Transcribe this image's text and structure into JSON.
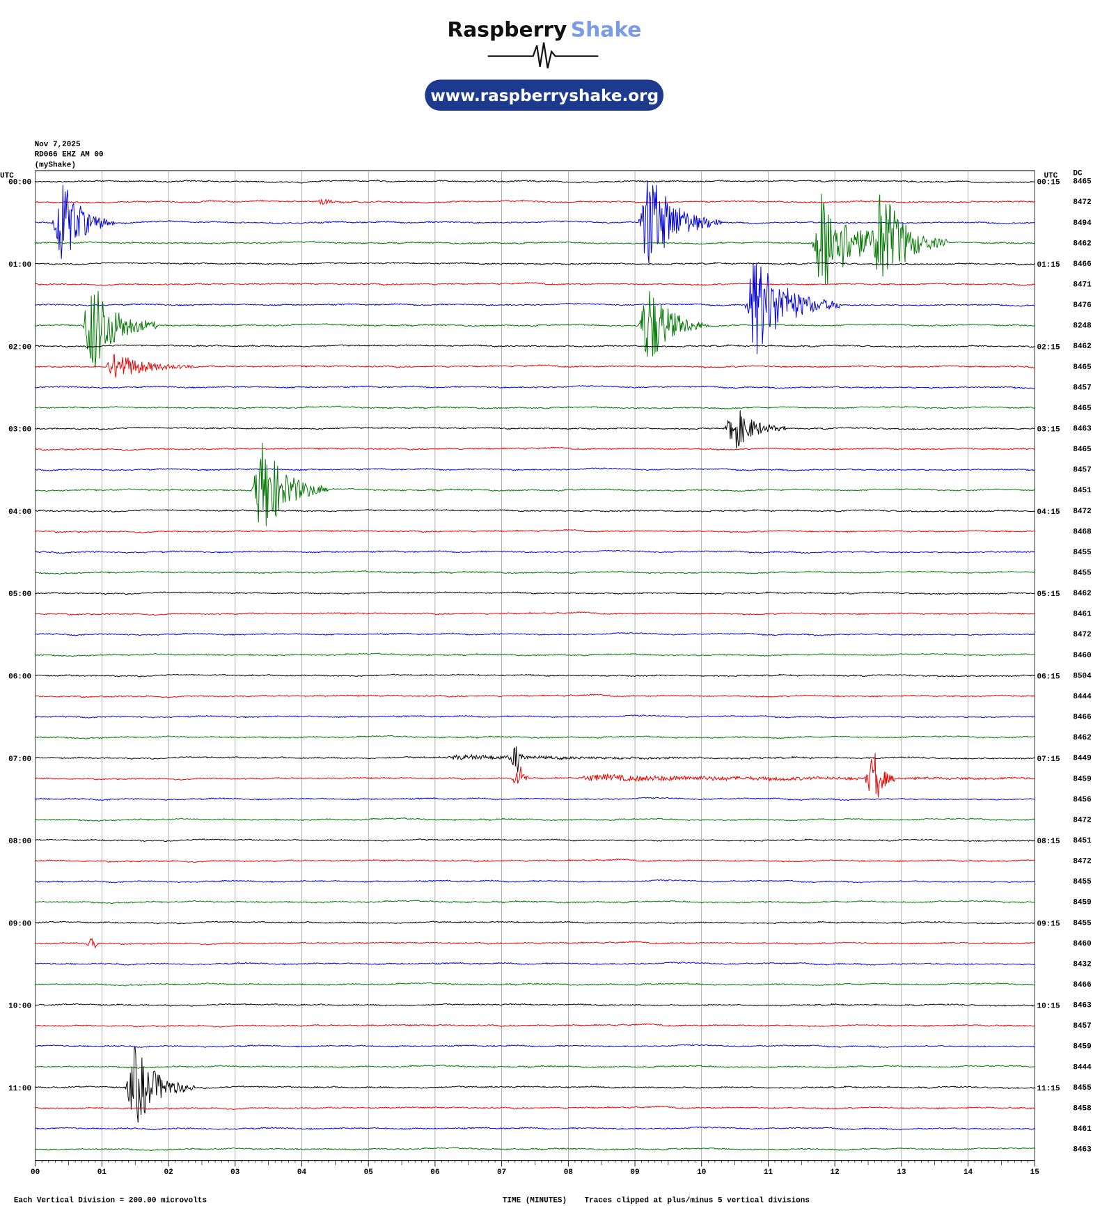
{
  "header": {
    "brand": "Raspberry",
    "brand_accent": "Shake",
    "url": "www.raspberryshake.org"
  },
  "info": {
    "date": "Nov 7,2025",
    "station": "RD066 EHZ AM 00",
    "network": "(myShake)"
  },
  "axis": {
    "left_title": "UTC",
    "right_title": "UTC",
    "dc_title": "DC",
    "left_times": [
      "00:00",
      "01:00",
      "02:00",
      "03:00",
      "04:00",
      "05:00",
      "06:00",
      "07:00",
      "08:00",
      "09:00",
      "10:00",
      "11:00"
    ],
    "right_times": [
      "00:15",
      "01:15",
      "02:15",
      "03:15",
      "04:15",
      "05:15",
      "06:15",
      "07:15",
      "08:15",
      "09:15",
      "10:15",
      "11:15"
    ],
    "dc_values": [
      8465,
      8472,
      8494,
      8462,
      8466,
      8471,
      8476,
      8248,
      8462,
      8465,
      8457,
      8465,
      8463,
      8465,
      8457,
      8451,
      8472,
      8468,
      8455,
      8455,
      8462,
      8461,
      8472,
      8460,
      8504,
      8444,
      8466,
      8462,
      8449,
      8459,
      8456,
      8472,
      8451,
      8472,
      8455,
      8459,
      8455,
      8460,
      8432,
      8466,
      8463,
      8457,
      8459,
      8444,
      8455,
      8458,
      8461,
      8463
    ],
    "x_ticks": [
      "00",
      "01",
      "02",
      "03",
      "04",
      "05",
      "06",
      "07",
      "08",
      "09",
      "10",
      "11",
      "12",
      "13",
      "14",
      "15"
    ],
    "x_title": "TIME (MINUTES)"
  },
  "footer": {
    "scale": "Each Vertical Division =  200.00 microvolts",
    "clip": "Traces clipped at plus/minus 5 vertical divisions"
  }
}
